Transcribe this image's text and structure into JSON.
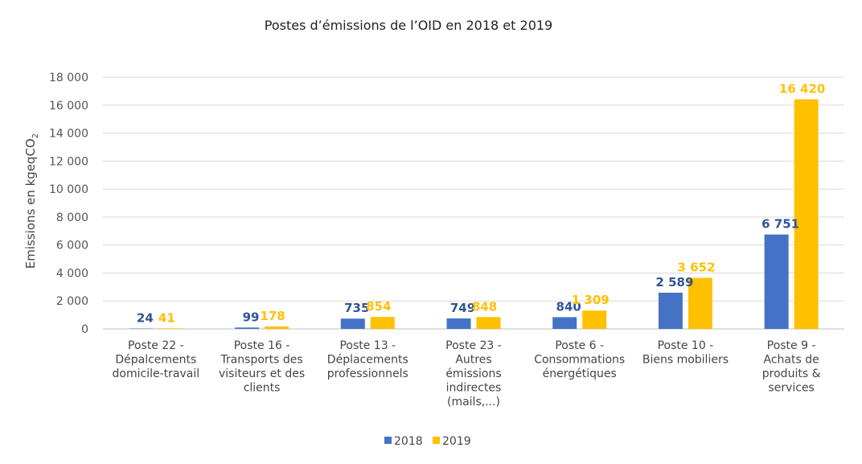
{
  "chart_data": {
    "type": "bar",
    "title": "Postes d’émissions de l’OID en 2018 et 2019",
    "ylabel": "Emissions en kgeqCO",
    "ylabel_subscript": "2",
    "xlabel": "",
    "ylim": [
      0,
      18000
    ],
    "yticks": [
      0,
      2000,
      4000,
      6000,
      8000,
      10000,
      12000,
      14000,
      16000,
      18000
    ],
    "ytick_labels": [
      "0",
      "2 000",
      "4 000",
      "6 000",
      "8 000",
      "10 000",
      "12 000",
      "14 000",
      "16 000",
      "18 000"
    ],
    "grid": true,
    "legend_position": "bottom",
    "categories": [
      [
        "Poste 22 -",
        "Dépalcements",
        "domicile-travail"
      ],
      [
        "Poste 16 -",
        "Transports des",
        "visiteurs et des",
        "clients"
      ],
      [
        "Poste 13 -",
        "Déplacements",
        "professionnels"
      ],
      [
        "Poste 23 -",
        "Autres",
        "émissions",
        "indirectes",
        "(mails,...)"
      ],
      [
        "Poste 6 -",
        "Consommations",
        "énergétiques"
      ],
      [
        "Poste 10 -",
        "Biens mobiliers"
      ],
      [
        "Poste 9 -",
        "Achats de",
        "produits &",
        "services"
      ]
    ],
    "series": [
      {
        "name": "2018",
        "color": "#4472C4",
        "label_color": "#2F5597",
        "values": [
          24,
          99,
          735,
          749,
          840,
          2589,
          6751
        ],
        "labels": [
          "24",
          "99",
          "735",
          "749",
          "840",
          "2 589",
          "6 751"
        ]
      },
      {
        "name": "2019",
        "color": "#FFC000",
        "label_color": "#FFC000",
        "values": [
          41,
          178,
          854,
          848,
          1309,
          3652,
          16420
        ],
        "labels": [
          "41",
          "178",
          "854",
          "848",
          "1 309",
          "3 652",
          "16 420"
        ]
      }
    ]
  }
}
